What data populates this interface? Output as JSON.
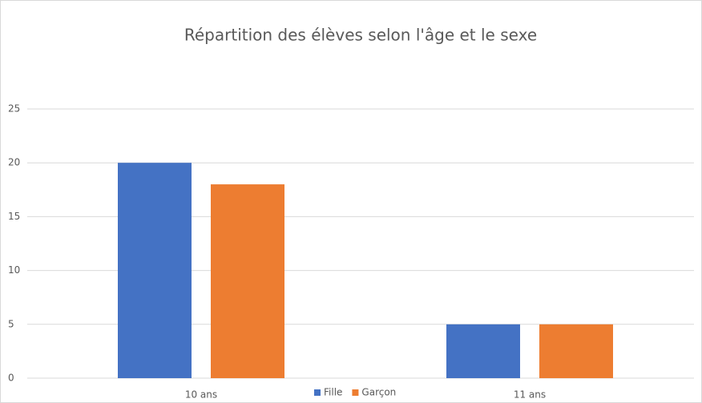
{
  "chart_data": {
    "type": "bar",
    "title": "Répartition des élèves selon l'âge et le sexe",
    "categories": [
      "10 ans",
      "11 ans"
    ],
    "series": [
      {
        "name": "Fille",
        "color": "#4472c4",
        "values": [
          20,
          5
        ]
      },
      {
        "name": "Garçon",
        "color": "#ed7d31",
        "values": [
          18,
          5
        ]
      }
    ],
    "ylim": [
      0,
      25
    ],
    "yticks": [
      0,
      5,
      10,
      15,
      20,
      25
    ],
    "grid": true,
    "legend": "bottom"
  }
}
